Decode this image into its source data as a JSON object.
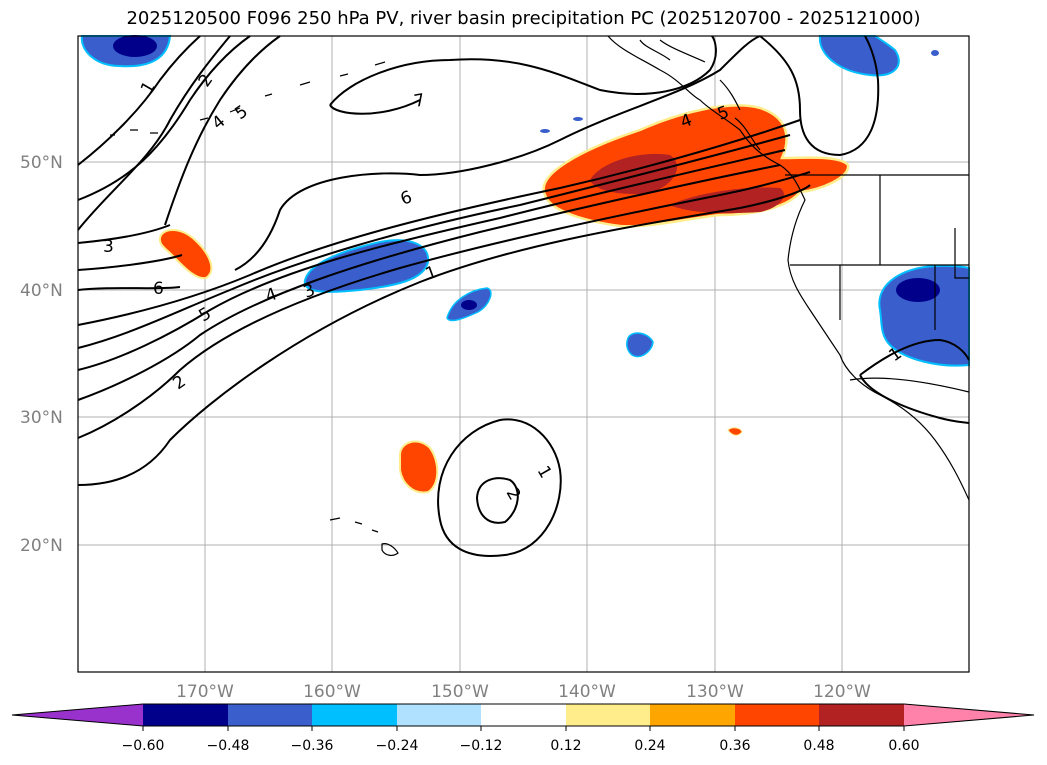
{
  "title": "2025120500 F096 250 hPa PV, river basin precipitation PC (2025120700 - 2025121000)",
  "latitude_labels": [
    "50°N",
    "40°N",
    "30°N",
    "20°N"
  ],
  "longitude_labels": [
    "170°W",
    "160°W",
    "150°W",
    "140°W",
    "130°W",
    "120°W"
  ],
  "colorbar": {
    "ticks": [
      "−0.60",
      "−0.48",
      "−0.36",
      "−0.24",
      "−0.12",
      "0.12",
      "0.24",
      "0.36",
      "0.48",
      "0.60"
    ],
    "colors": [
      "#9932cc",
      "#00008b",
      "#3a5fcd",
      "#00bfff",
      "#b0e2ff",
      "#ffffff",
      "#ffec8b",
      "#ffa500",
      "#ff4500",
      "#b22222",
      "#ff82ab"
    ]
  },
  "contour_labels": [
    "1",
    "2",
    "3",
    "4",
    "5",
    "6",
    "7",
    "6",
    "4",
    "3",
    "5",
    "2",
    "1",
    "1",
    "2",
    "1",
    "4",
    "5"
  ],
  "colors": {
    "neg_dark": "#00008b",
    "neg_mid": "#3a5fcd",
    "neg_light": "#00bfff",
    "pos_orange": "#ff4500",
    "pos_dark": "#b22222",
    "pos_yellow": "#ffec8b",
    "grid": "#b0b0b0"
  }
}
